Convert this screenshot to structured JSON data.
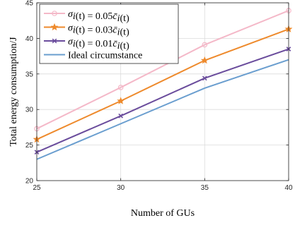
{
  "chart_data": {
    "type": "line",
    "xlabel": "Number of GUs",
    "ylabel": "Total energy consumption/J",
    "xlim": [
      25,
      40
    ],
    "ylim": [
      20,
      45
    ],
    "xticks": [
      "25",
      "30",
      "35",
      "40"
    ],
    "yticks": [
      "20",
      "25",
      "30",
      "35",
      "40",
      "45"
    ],
    "grid": true,
    "legend_position": "top-left",
    "x": [
      25,
      30,
      35,
      40
    ],
    "series": [
      {
        "name": "σi(t) = 0.05c̄i(t)",
        "legend": {
          "sigma": "σ",
          "sub": "i",
          "arg": "(t) = 0.05",
          "cbar": "c̄",
          "sub2": "i",
          "arg2": "(t)"
        },
        "values": [
          27.3,
          33.1,
          39.1,
          43.9
        ],
        "color": "#f4b8c8",
        "marker": "circle"
      },
      {
        "name": "σi(t) = 0.03c̄i(t)",
        "legend": {
          "sigma": "σ",
          "sub": "i",
          "arg": "(t) = 0.03",
          "cbar": "c̄",
          "sub2": "i",
          "arg2": "(t)"
        },
        "values": [
          25.8,
          31.2,
          36.9,
          41.3
        ],
        "color": "#ee8a2c",
        "marker": "star"
      },
      {
        "name": "σi(t) = 0.01c̄i(t)",
        "legend": {
          "sigma": "σ",
          "sub": "i",
          "arg": "(t) = 0.01",
          "cbar": "c̄",
          "sub2": "i",
          "arg2": "(t)"
        },
        "values": [
          24.0,
          29.1,
          34.4,
          38.5
        ],
        "color": "#6a4c9c",
        "marker": "x"
      },
      {
        "name": "Ideal circumstance",
        "values": [
          23.0,
          28.0,
          33.0,
          37.0
        ],
        "color": "#6a9ecf",
        "marker": "none"
      }
    ]
  }
}
